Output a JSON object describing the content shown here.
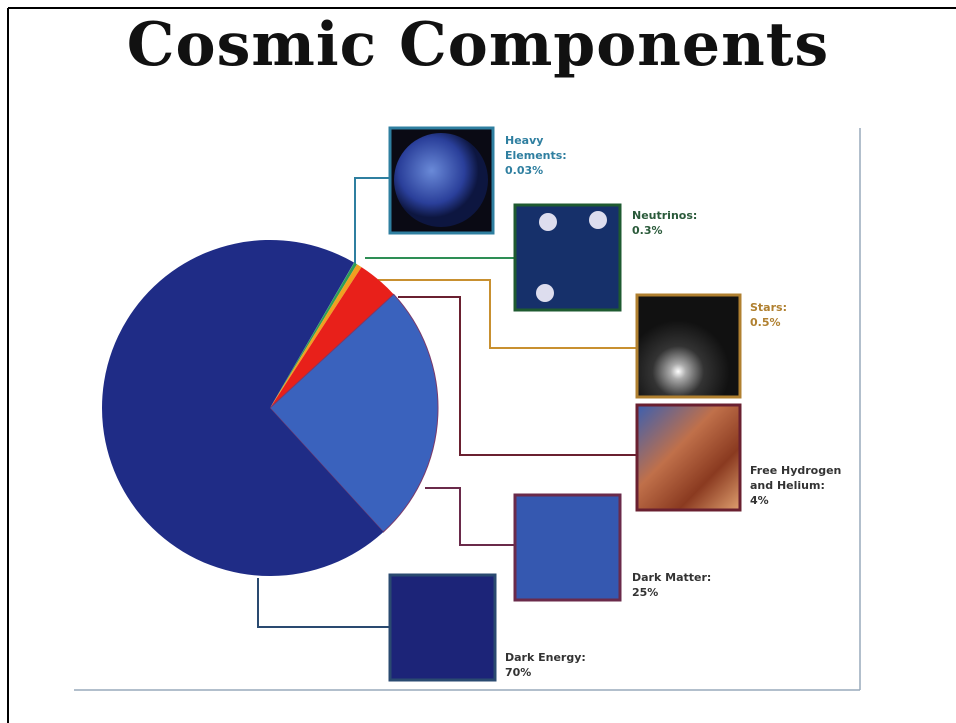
{
  "chart_data": {
    "type": "pie",
    "title": "Cosmic Components",
    "categories": [
      "Heavy Elements:",
      "Neutrinos:",
      "Stars:",
      "Free Hydrogen and Helium:",
      "Dark Matter:",
      "Dark Energy:"
    ],
    "values": [
      0.03,
      0.3,
      0.5,
      4,
      25,
      70
    ],
    "value_labels": [
      "0.03%",
      "0.3%",
      "0.5%",
      "4%",
      "25%",
      "70%"
    ],
    "colors": [
      "#2f8fb0",
      "#2e9e55",
      "#f0a020",
      "#e8201a",
      "#3a62bd",
      "#1f2c86"
    ]
  }
}
